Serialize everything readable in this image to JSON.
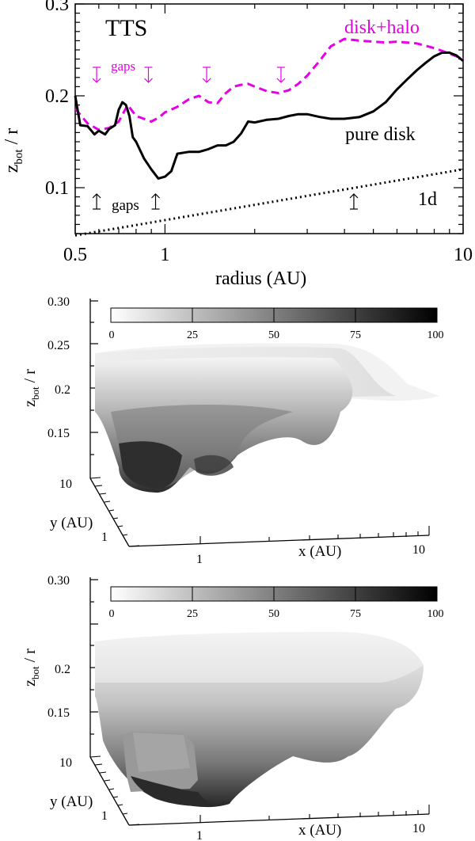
{
  "chart_data": [
    {
      "type": "line",
      "title": "TTS",
      "xlabel": "radius (AU)",
      "ylabel": "z",
      "ylabel_sub": "bot",
      "ylabel_suffix": " / r",
      "xscale": "log",
      "xlim": [
        0.5,
        10
      ],
      "ylim": [
        0.05,
        0.3
      ],
      "x_ticks": [
        {
          "value": 0.5,
          "label": "0.5"
        },
        {
          "value": 1,
          "label": "1"
        },
        {
          "value": 10,
          "label": "10"
        }
      ],
      "y_ticks": [
        {
          "value": 0.1,
          "label": "0.1"
        },
        {
          "value": 0.2,
          "label": "0.2"
        },
        {
          "value": 0.3,
          "label": "0.3"
        }
      ],
      "series": [
        {
          "name": "disk+halo",
          "color": "#e600e6",
          "style": "dashed",
          "x": [
            0.5,
            0.55,
            0.6,
            0.65,
            0.7,
            0.75,
            0.8,
            0.85,
            0.9,
            0.95,
            1.0,
            1.1,
            1.2,
            1.3,
            1.4,
            1.5,
            1.6,
            1.7,
            1.8,
            1.9,
            2.0,
            2.2,
            2.4,
            2.6,
            2.8,
            3.0,
            3.3,
            3.6,
            4.0,
            4.5,
            5.0,
            5.5,
            6.0,
            7.0,
            8.0,
            9.0,
            10.0
          ],
          "y": [
            0.186,
            0.17,
            0.163,
            0.165,
            0.172,
            0.19,
            0.178,
            0.175,
            0.172,
            0.176,
            0.182,
            0.188,
            0.196,
            0.2,
            0.193,
            0.192,
            0.203,
            0.21,
            0.212,
            0.213,
            0.21,
            0.205,
            0.203,
            0.206,
            0.213,
            0.222,
            0.238,
            0.254,
            0.262,
            0.26,
            0.259,
            0.258,
            0.259,
            0.257,
            0.252,
            0.246,
            0.24
          ]
        },
        {
          "name": "pure disk",
          "color": "#000000",
          "style": "solid",
          "x": [
            0.5,
            0.52,
            0.55,
            0.58,
            0.6,
            0.63,
            0.65,
            0.68,
            0.7,
            0.72,
            0.74,
            0.76,
            0.78,
            0.8,
            0.85,
            0.9,
            0.95,
            1.0,
            1.05,
            1.1,
            1.2,
            1.3,
            1.4,
            1.5,
            1.6,
            1.7,
            1.8,
            1.9,
            2.0,
            2.2,
            2.4,
            2.6,
            2.8,
            3.0,
            3.3,
            3.6,
            4.0,
            4.5,
            5.0,
            5.5,
            6.0,
            6.5,
            7.0,
            7.5,
            8.0,
            8.5,
            9.0,
            9.5,
            10.0
          ],
          "y": [
            0.2,
            0.168,
            0.167,
            0.158,
            0.162,
            0.158,
            0.164,
            0.168,
            0.185,
            0.193,
            0.19,
            0.178,
            0.155,
            0.15,
            0.132,
            0.12,
            0.11,
            0.112,
            0.118,
            0.137,
            0.139,
            0.139,
            0.142,
            0.146,
            0.146,
            0.15,
            0.159,
            0.172,
            0.171,
            0.174,
            0.175,
            0.178,
            0.18,
            0.18,
            0.177,
            0.175,
            0.175,
            0.177,
            0.183,
            0.193,
            0.207,
            0.218,
            0.228,
            0.236,
            0.243,
            0.247,
            0.247,
            0.244,
            0.238
          ]
        },
        {
          "name": "1d",
          "color": "#000000",
          "style": "dotted",
          "x": [
            0.5,
            10
          ],
          "y": [
            0.048,
            0.12
          ]
        }
      ],
      "annotations": [
        {
          "text": "gaps",
          "color": "#e600e6",
          "arrows_down_x": [
            0.59,
            0.88,
            1.38,
            2.45
          ]
        },
        {
          "text": "gaps",
          "color": "#000000",
          "arrows_up_x": [
            0.59,
            0.93,
            4.3
          ]
        }
      ]
    },
    {
      "type": "surface",
      "zlabel": "z",
      "zlabel_sub": "bot",
      "zlabel_suffix": " / r",
      "xlabel": "x (AU)",
      "ylabel": "y (AU)",
      "z_ticks": [
        "0.30",
        "0.25",
        "0.2",
        "0.15"
      ],
      "x_ticks": [
        "1",
        "10"
      ],
      "y_ticks": [
        "10",
        "1"
      ],
      "colorbar_ticks": [
        "0",
        "25",
        "50",
        "75",
        "100"
      ],
      "colorbar_range": [
        0,
        100
      ],
      "colormap": "white-to-black"
    },
    {
      "type": "surface",
      "zlabel": "z",
      "zlabel_sub": "bot",
      "zlabel_suffix": " / r",
      "xlabel": "x (AU)",
      "ylabel": "y (AU)",
      "z_ticks": [
        "0.30",
        "0.2",
        "0.15"
      ],
      "x_ticks": [
        "1",
        "10"
      ],
      "y_ticks": [
        "10",
        "1"
      ],
      "colorbar_ticks": [
        "0",
        "25",
        "50",
        "75",
        "100"
      ],
      "colorbar_range": [
        0,
        100
      ],
      "colormap": "white-to-black"
    }
  ],
  "labels": {
    "disk_halo": "disk+halo",
    "pure_disk": "pure disk",
    "one_d": "1d"
  }
}
